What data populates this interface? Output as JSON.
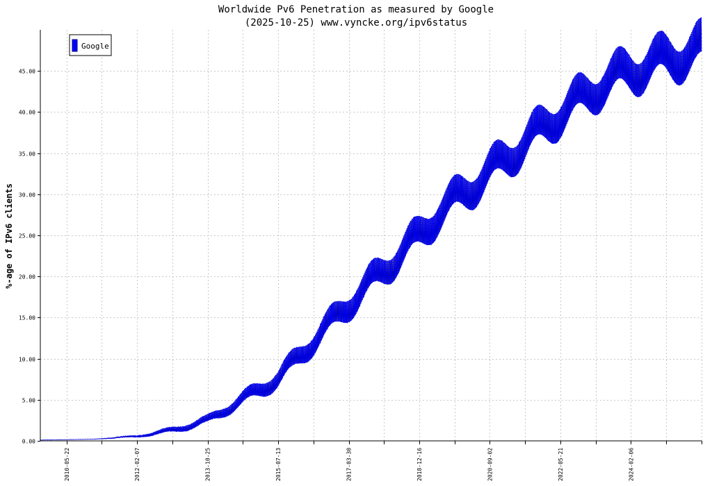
{
  "chart_data": {
    "type": "line",
    "title": "Worldwide Pv6 Penetration as measured by Google",
    "subtitle": "(2025-10-25) www.vyncke.org/ipv6status",
    "ylabel": "%-age of IPv6 clients",
    "xlabel": "",
    "ylim": [
      0,
      50
    ],
    "xlim": [
      "2009-10-01",
      "2025-10-25"
    ],
    "y_ticks": [
      0,
      5,
      10,
      15,
      20,
      25,
      30,
      35,
      40,
      45
    ],
    "y_tick_labels": [
      "0.00",
      "5.00",
      "10.00",
      "15.00",
      "20.00",
      "25.00",
      "30.00",
      "35.00",
      "40.00",
      "45.00"
    ],
    "x_tick_labels": [
      "2010-05-22",
      "2012-02-07",
      "2013-10-25",
      "2015-07-13",
      "2017-03-30",
      "2018-12-16",
      "2020-09-02",
      "2022-05-21",
      "2024-02-06"
    ],
    "grid": true,
    "legend_position": "top-left",
    "colors": {
      "series": "#0000ff",
      "series_dark": "#00008b",
      "grid": "#c8c8c8",
      "axis": "#000000"
    },
    "series": [
      {
        "name": "Google",
        "weekly_swing_upper": [
          0,
          0,
          0,
          0.2,
          0.6,
          0.9,
          2.0,
          3.0,
          3.6,
          3.8,
          4.0,
          4.2,
          4.4,
          4.6,
          4.8
        ],
        "x": [
          "2009-10-01",
          "2010-05-22",
          "2011-01-01",
          "2012-02-07",
          "2013-01-01",
          "2013-10-25",
          "2015-07-13",
          "2017-03-30",
          "2018-12-16",
          "2019-06-01",
          "2020-09-02",
          "2022-05-21",
          "2023-06-01",
          "2024-02-06",
          "2025-10-25"
        ],
        "y": [
          0.1,
          0.15,
          0.2,
          0.45,
          1.0,
          2.0,
          6.5,
          15.0,
          23.0,
          25.5,
          30.5,
          37.5,
          41.0,
          42.5,
          45.0
        ]
      }
    ]
  }
}
